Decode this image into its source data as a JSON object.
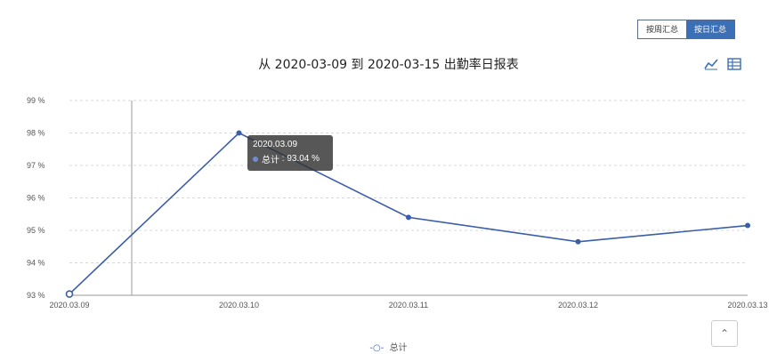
{
  "toggle": {
    "labels": [
      "按周汇总",
      "按日汇总"
    ],
    "active_index": 1
  },
  "tooltip": {
    "title": "2020.03.09",
    "series": "总计",
    "value": "93.04 %"
  },
  "scroll_top_icon": "chevron-up-icon",
  "colors": {
    "line": "#3b5ea8",
    "active": "#3b6fb6"
  },
  "chart_data": {
    "type": "line",
    "title": "从 2020-03-09 到 2020-03-15 出勤率日报表",
    "categories": [
      "2020.03.09",
      "2020.03.10",
      "2020.03.11",
      "2020.03.12",
      "2020.03.13"
    ],
    "series": [
      {
        "name": "总计",
        "values": [
          93.04,
          98.0,
          95.4,
          94.65,
          95.15
        ]
      }
    ],
    "y_ticks": [
      "93 %",
      "94 %",
      "95 %",
      "96 %",
      "97 %",
      "98 %",
      "99 %"
    ],
    "ylim": [
      93,
      99
    ],
    "xlabel": "",
    "ylabel": "",
    "grid": true,
    "legend": "bottom-center"
  }
}
